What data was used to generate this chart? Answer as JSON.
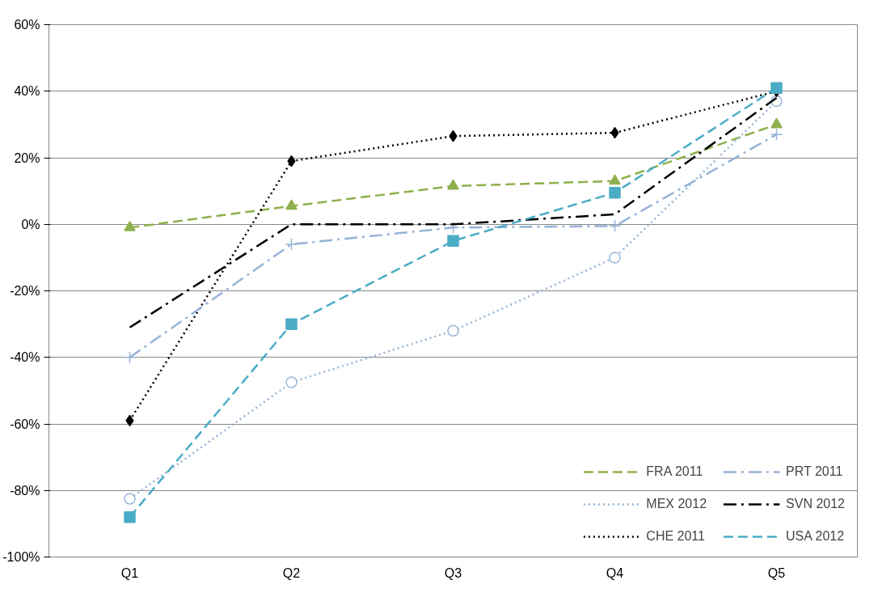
{
  "chart_data": {
    "type": "line",
    "categories": [
      "Q1",
      "Q2",
      "Q3",
      "Q4",
      "Q5"
    ],
    "ylim": [
      -100,
      60
    ],
    "yticks": [
      {
        "value": -100,
        "label": "-100%"
      },
      {
        "value": -80,
        "label": "-80%"
      },
      {
        "value": -60,
        "label": "-60%"
      },
      {
        "value": -40,
        "label": "-40%"
      },
      {
        "value": -20,
        "label": "-20%"
      },
      {
        "value": 0,
        "label": "0%"
      },
      {
        "value": 20,
        "label": "20%"
      },
      {
        "value": 40,
        "label": "40%"
      },
      {
        "value": 60,
        "label": "60%"
      }
    ],
    "grid": "y",
    "legend": "bottom right",
    "series": [
      {
        "name": "FRA 2011",
        "color": "#8eb04c",
        "marker": "triangle",
        "line_style": "dashed",
        "values": [
          -1,
          5.5,
          11.5,
          13,
          30
        ]
      },
      {
        "name": "MEX 2012",
        "color": "#95b3d7",
        "marker": "circle",
        "line_style": "dotted",
        "values": [
          -82.5,
          -47.5,
          -32,
          -10,
          37
        ]
      },
      {
        "name": "CHE 2011",
        "color": "#000000",
        "marker": "diamond",
        "line_style": "dotted",
        "values": [
          -59,
          19,
          26.5,
          27.5,
          40
        ]
      },
      {
        "name": "PRT 2011",
        "color": "#95b3d7",
        "marker": "cross",
        "line_style": "dashdot",
        "values": [
          -40,
          -6,
          -1,
          -0.5,
          27
        ]
      },
      {
        "name": "SVN 2012",
        "color": "#000000",
        "marker": "none",
        "line_style": "dashdot",
        "values": [
          -31,
          0,
          0,
          3,
          38
        ]
      },
      {
        "name": "USA 2012",
        "color": "#4bacc6",
        "marker": "square",
        "line_style": "dashed",
        "values": [
          -88,
          -30,
          -5,
          9.5,
          41
        ]
      }
    ]
  }
}
